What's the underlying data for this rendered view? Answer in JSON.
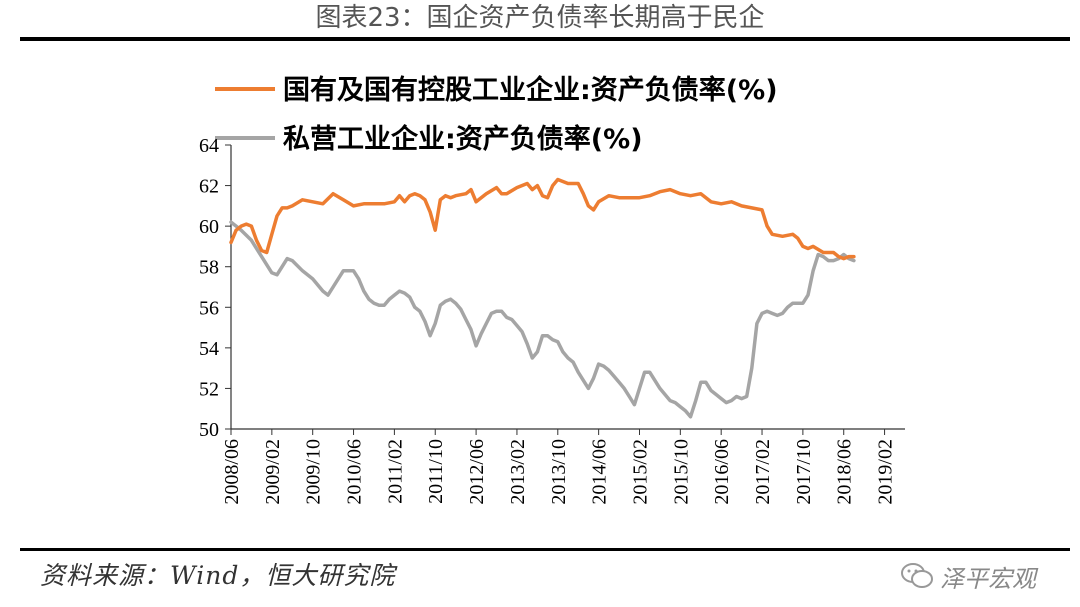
{
  "page": {
    "title": "图表23：国企资产负债率长期高于民企",
    "source": "资料来源：Wind，恒大研究院",
    "watermark": "泽平宏观"
  },
  "chart_data": {
    "type": "line",
    "title": "图表23：国企资产负债率长期高于民企",
    "xlabel": "",
    "ylabel": "",
    "ylim": [
      50,
      64
    ],
    "yticks": [
      50,
      52,
      54,
      56,
      58,
      60,
      62,
      64
    ],
    "grid": false,
    "legend_position": "top",
    "x_start": "2008/06",
    "x_end": "2019/06",
    "x_tick_labels": [
      "2008/06",
      "2009/02",
      "2009/10",
      "2010/06",
      "2011/02",
      "2011/10",
      "2012/06",
      "2013/02",
      "2013/10",
      "2014/06",
      "2015/02",
      "2015/10",
      "2016/06",
      "2017/02",
      "2017/10",
      "2018/06",
      "2019/02"
    ],
    "series": [
      {
        "name": "国有及国有控股工业企业:资产负债率(%)",
        "color": "#ED7D31",
        "points": [
          [
            0,
            59.2
          ],
          [
            1,
            59.8
          ],
          [
            2,
            60.0
          ],
          [
            3,
            60.1
          ],
          [
            4,
            60.0
          ],
          [
            5,
            59.3
          ],
          [
            6,
            58.8
          ],
          [
            7,
            58.7
          ],
          [
            8,
            59.6
          ],
          [
            9,
            60.5
          ],
          [
            10,
            60.9
          ],
          [
            11,
            60.9
          ],
          [
            12,
            61.0
          ],
          [
            14,
            61.3
          ],
          [
            16,
            61.2
          ],
          [
            18,
            61.1
          ],
          [
            20,
            61.6
          ],
          [
            22,
            61.3
          ],
          [
            24,
            61.0
          ],
          [
            26,
            61.1
          ],
          [
            28,
            61.1
          ],
          [
            30,
            61.1
          ],
          [
            32,
            61.2
          ],
          [
            33,
            61.5
          ],
          [
            34,
            61.2
          ],
          [
            35,
            61.5
          ],
          [
            36,
            61.6
          ],
          [
            37,
            61.5
          ],
          [
            38,
            61.3
          ],
          [
            39,
            60.7
          ],
          [
            40,
            59.8
          ],
          [
            41,
            61.3
          ],
          [
            42,
            61.5
          ],
          [
            43,
            61.4
          ],
          [
            44,
            61.5
          ],
          [
            46,
            61.6
          ],
          [
            47,
            61.8
          ],
          [
            48,
            61.2
          ],
          [
            50,
            61.6
          ],
          [
            52,
            61.9
          ],
          [
            53,
            61.6
          ],
          [
            54,
            61.6
          ],
          [
            56,
            61.9
          ],
          [
            58,
            62.1
          ],
          [
            59,
            61.8
          ],
          [
            60,
            62.0
          ],
          [
            61,
            61.5
          ],
          [
            62,
            61.4
          ],
          [
            63,
            62.0
          ],
          [
            64,
            62.3
          ],
          [
            65,
            62.2
          ],
          [
            66,
            62.1
          ],
          [
            68,
            62.1
          ],
          [
            69,
            61.6
          ],
          [
            70,
            61.0
          ],
          [
            71,
            60.8
          ],
          [
            72,
            61.2
          ],
          [
            74,
            61.5
          ],
          [
            76,
            61.4
          ],
          [
            78,
            61.4
          ],
          [
            80,
            61.4
          ],
          [
            82,
            61.5
          ],
          [
            84,
            61.7
          ],
          [
            86,
            61.8
          ],
          [
            88,
            61.6
          ],
          [
            90,
            61.5
          ],
          [
            92,
            61.6
          ],
          [
            94,
            61.2
          ],
          [
            96,
            61.1
          ],
          [
            98,
            61.2
          ],
          [
            100,
            61.0
          ],
          [
            102,
            60.9
          ],
          [
            104,
            60.8
          ],
          [
            105,
            60.0
          ],
          [
            106,
            59.6
          ],
          [
            108,
            59.5
          ],
          [
            110,
            59.6
          ],
          [
            111,
            59.4
          ],
          [
            112,
            59.0
          ],
          [
            113,
            58.9
          ],
          [
            114,
            59.0
          ],
          [
            116,
            58.7
          ],
          [
            118,
            58.7
          ],
          [
            119,
            58.5
          ],
          [
            120,
            58.4
          ],
          [
            121,
            58.5
          ],
          [
            122,
            58.5
          ]
        ]
      },
      {
        "name": "私营工业企业:资产负债率(%)",
        "color": "#A5A5A5",
        "points": [
          [
            0,
            60.2
          ],
          [
            1,
            60.0
          ],
          [
            2,
            59.8
          ],
          [
            4,
            59.3
          ],
          [
            6,
            58.5
          ],
          [
            8,
            57.7
          ],
          [
            9,
            57.6
          ],
          [
            10,
            58.0
          ],
          [
            11,
            58.4
          ],
          [
            12,
            58.3
          ],
          [
            14,
            57.8
          ],
          [
            16,
            57.4
          ],
          [
            18,
            56.8
          ],
          [
            19,
            56.6
          ],
          [
            20,
            57.0
          ],
          [
            22,
            57.8
          ],
          [
            24,
            57.8
          ],
          [
            25,
            57.4
          ],
          [
            26,
            56.8
          ],
          [
            27,
            56.4
          ],
          [
            28,
            56.2
          ],
          [
            29,
            56.1
          ],
          [
            30,
            56.1
          ],
          [
            31,
            56.4
          ],
          [
            32,
            56.6
          ],
          [
            33,
            56.8
          ],
          [
            34,
            56.7
          ],
          [
            35,
            56.5
          ],
          [
            36,
            56.0
          ],
          [
            37,
            55.8
          ],
          [
            38,
            55.3
          ],
          [
            39,
            54.6
          ],
          [
            40,
            55.2
          ],
          [
            41,
            56.1
          ],
          [
            42,
            56.3
          ],
          [
            43,
            56.4
          ],
          [
            44,
            56.2
          ],
          [
            45,
            55.9
          ],
          [
            46,
            55.4
          ],
          [
            47,
            54.9
          ],
          [
            48,
            54.1
          ],
          [
            49,
            54.7
          ],
          [
            50,
            55.2
          ],
          [
            51,
            55.7
          ],
          [
            52,
            55.8
          ],
          [
            53,
            55.8
          ],
          [
            54,
            55.5
          ],
          [
            55,
            55.4
          ],
          [
            56,
            55.1
          ],
          [
            57,
            54.8
          ],
          [
            58,
            54.2
          ],
          [
            59,
            53.5
          ],
          [
            60,
            53.8
          ],
          [
            61,
            54.6
          ],
          [
            62,
            54.6
          ],
          [
            63,
            54.4
          ],
          [
            64,
            54.3
          ],
          [
            65,
            53.8
          ],
          [
            66,
            53.5
          ],
          [
            67,
            53.3
          ],
          [
            68,
            52.8
          ],
          [
            69,
            52.4
          ],
          [
            70,
            52.0
          ],
          [
            71,
            52.5
          ],
          [
            72,
            53.2
          ],
          [
            73,
            53.1
          ],
          [
            74,
            52.9
          ],
          [
            75,
            52.6
          ],
          [
            76,
            52.3
          ],
          [
            77,
            52.0
          ],
          [
            78,
            51.6
          ],
          [
            79,
            51.2
          ],
          [
            80,
            52.0
          ],
          [
            81,
            52.8
          ],
          [
            82,
            52.8
          ],
          [
            83,
            52.4
          ],
          [
            84,
            52.0
          ],
          [
            85,
            51.7
          ],
          [
            86,
            51.4
          ],
          [
            87,
            51.3
          ],
          [
            88,
            51.1
          ],
          [
            89,
            50.9
          ],
          [
            90,
            50.6
          ],
          [
            91,
            51.4
          ],
          [
            92,
            52.3
          ],
          [
            93,
            52.3
          ],
          [
            94,
            51.9
          ],
          [
            95,
            51.7
          ],
          [
            96,
            51.5
          ],
          [
            97,
            51.3
          ],
          [
            98,
            51.4
          ],
          [
            99,
            51.6
          ],
          [
            100,
            51.5
          ],
          [
            101,
            51.6
          ],
          [
            102,
            53.0
          ],
          [
            103,
            55.2
          ],
          [
            104,
            55.7
          ],
          [
            105,
            55.8
          ],
          [
            106,
            55.7
          ],
          [
            107,
            55.6
          ],
          [
            108,
            55.7
          ],
          [
            109,
            56.0
          ],
          [
            110,
            56.2
          ],
          [
            111,
            56.2
          ],
          [
            112,
            56.2
          ],
          [
            113,
            56.6
          ],
          [
            114,
            57.8
          ],
          [
            115,
            58.6
          ],
          [
            116,
            58.5
          ],
          [
            117,
            58.3
          ],
          [
            118,
            58.3
          ],
          [
            119,
            58.4
          ],
          [
            120,
            58.6
          ],
          [
            121,
            58.4
          ],
          [
            122,
            58.3
          ]
        ]
      }
    ]
  }
}
